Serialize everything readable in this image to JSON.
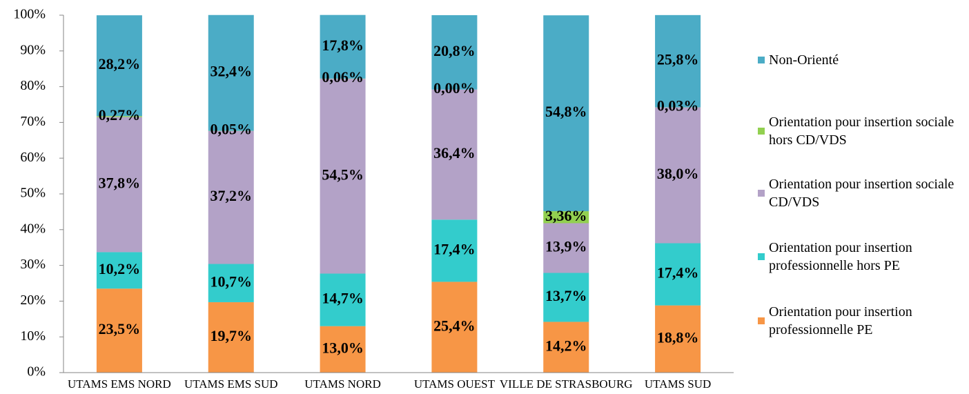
{
  "chart_data": {
    "type": "stacked-bar",
    "categories": [
      "UTAMS EMS NORD",
      "UTAMS EMS SUD",
      "UTAMS NORD",
      "UTAMS OUEST",
      "VILLE DE STRASBOURG",
      "UTAMS SUD"
    ],
    "series": [
      {
        "name": "Orientation pour insertion professionnelle PE",
        "color": "#f79646",
        "values": [
          23.5,
          19.7,
          13.0,
          25.4,
          14.2,
          18.8
        ],
        "value_labels": [
          "23,5%",
          "19,7%",
          "13,0%",
          "25,4%",
          "14,2%",
          "18,8%"
        ]
      },
      {
        "name": "Orientation pour insertion professionnelle hors PE",
        "color": "#33cccc",
        "values": [
          10.2,
          10.7,
          14.7,
          17.4,
          13.7,
          17.4
        ],
        "value_labels": [
          "10,2%",
          "10,7%",
          "14,7%",
          "17,4%",
          "13,7%",
          "17,4%"
        ]
      },
      {
        "name": "Orientation pour insertion sociale CD/VDS",
        "color": "#b3a2c7",
        "values": [
          37.8,
          37.2,
          54.5,
          36.4,
          13.9,
          38.0
        ],
        "value_labels": [
          "37,8%",
          "37,2%",
          "54,5%",
          "36,4%",
          "13,9%",
          "38,0%"
        ]
      },
      {
        "name": "Orientation pour insertion sociale hors CD/VDS",
        "color": "#92d050",
        "values": [
          0.27,
          0.05,
          0.06,
          0.0,
          3.36,
          0.03
        ],
        "value_labels": [
          "0,27%",
          "0,05%",
          "0,06%",
          "0,00%",
          "3,36%",
          "0,03%"
        ]
      },
      {
        "name": "Non-Orienté",
        "color": "#4bacc6",
        "values": [
          28.2,
          32.4,
          17.8,
          20.8,
          54.8,
          25.8
        ],
        "value_labels": [
          "28,2%",
          "32,4%",
          "17,8%",
          "20,8%",
          "54,8%",
          "25,8%"
        ]
      }
    ],
    "ylim": [
      0,
      100
    ],
    "yticks": [
      {
        "value": 0,
        "label": "0%"
      },
      {
        "value": 10,
        "label": "10%"
      },
      {
        "value": 20,
        "label": "20%"
      },
      {
        "value": 30,
        "label": "30%"
      },
      {
        "value": 40,
        "label": "40%"
      },
      {
        "value": 50,
        "label": "50%"
      },
      {
        "value": 60,
        "label": "60%"
      },
      {
        "value": 70,
        "label": "70%"
      },
      {
        "value": 80,
        "label": "80%"
      },
      {
        "value": 90,
        "label": "90%"
      },
      {
        "value": 100,
        "label": "100%"
      }
    ],
    "legend": "right"
  }
}
